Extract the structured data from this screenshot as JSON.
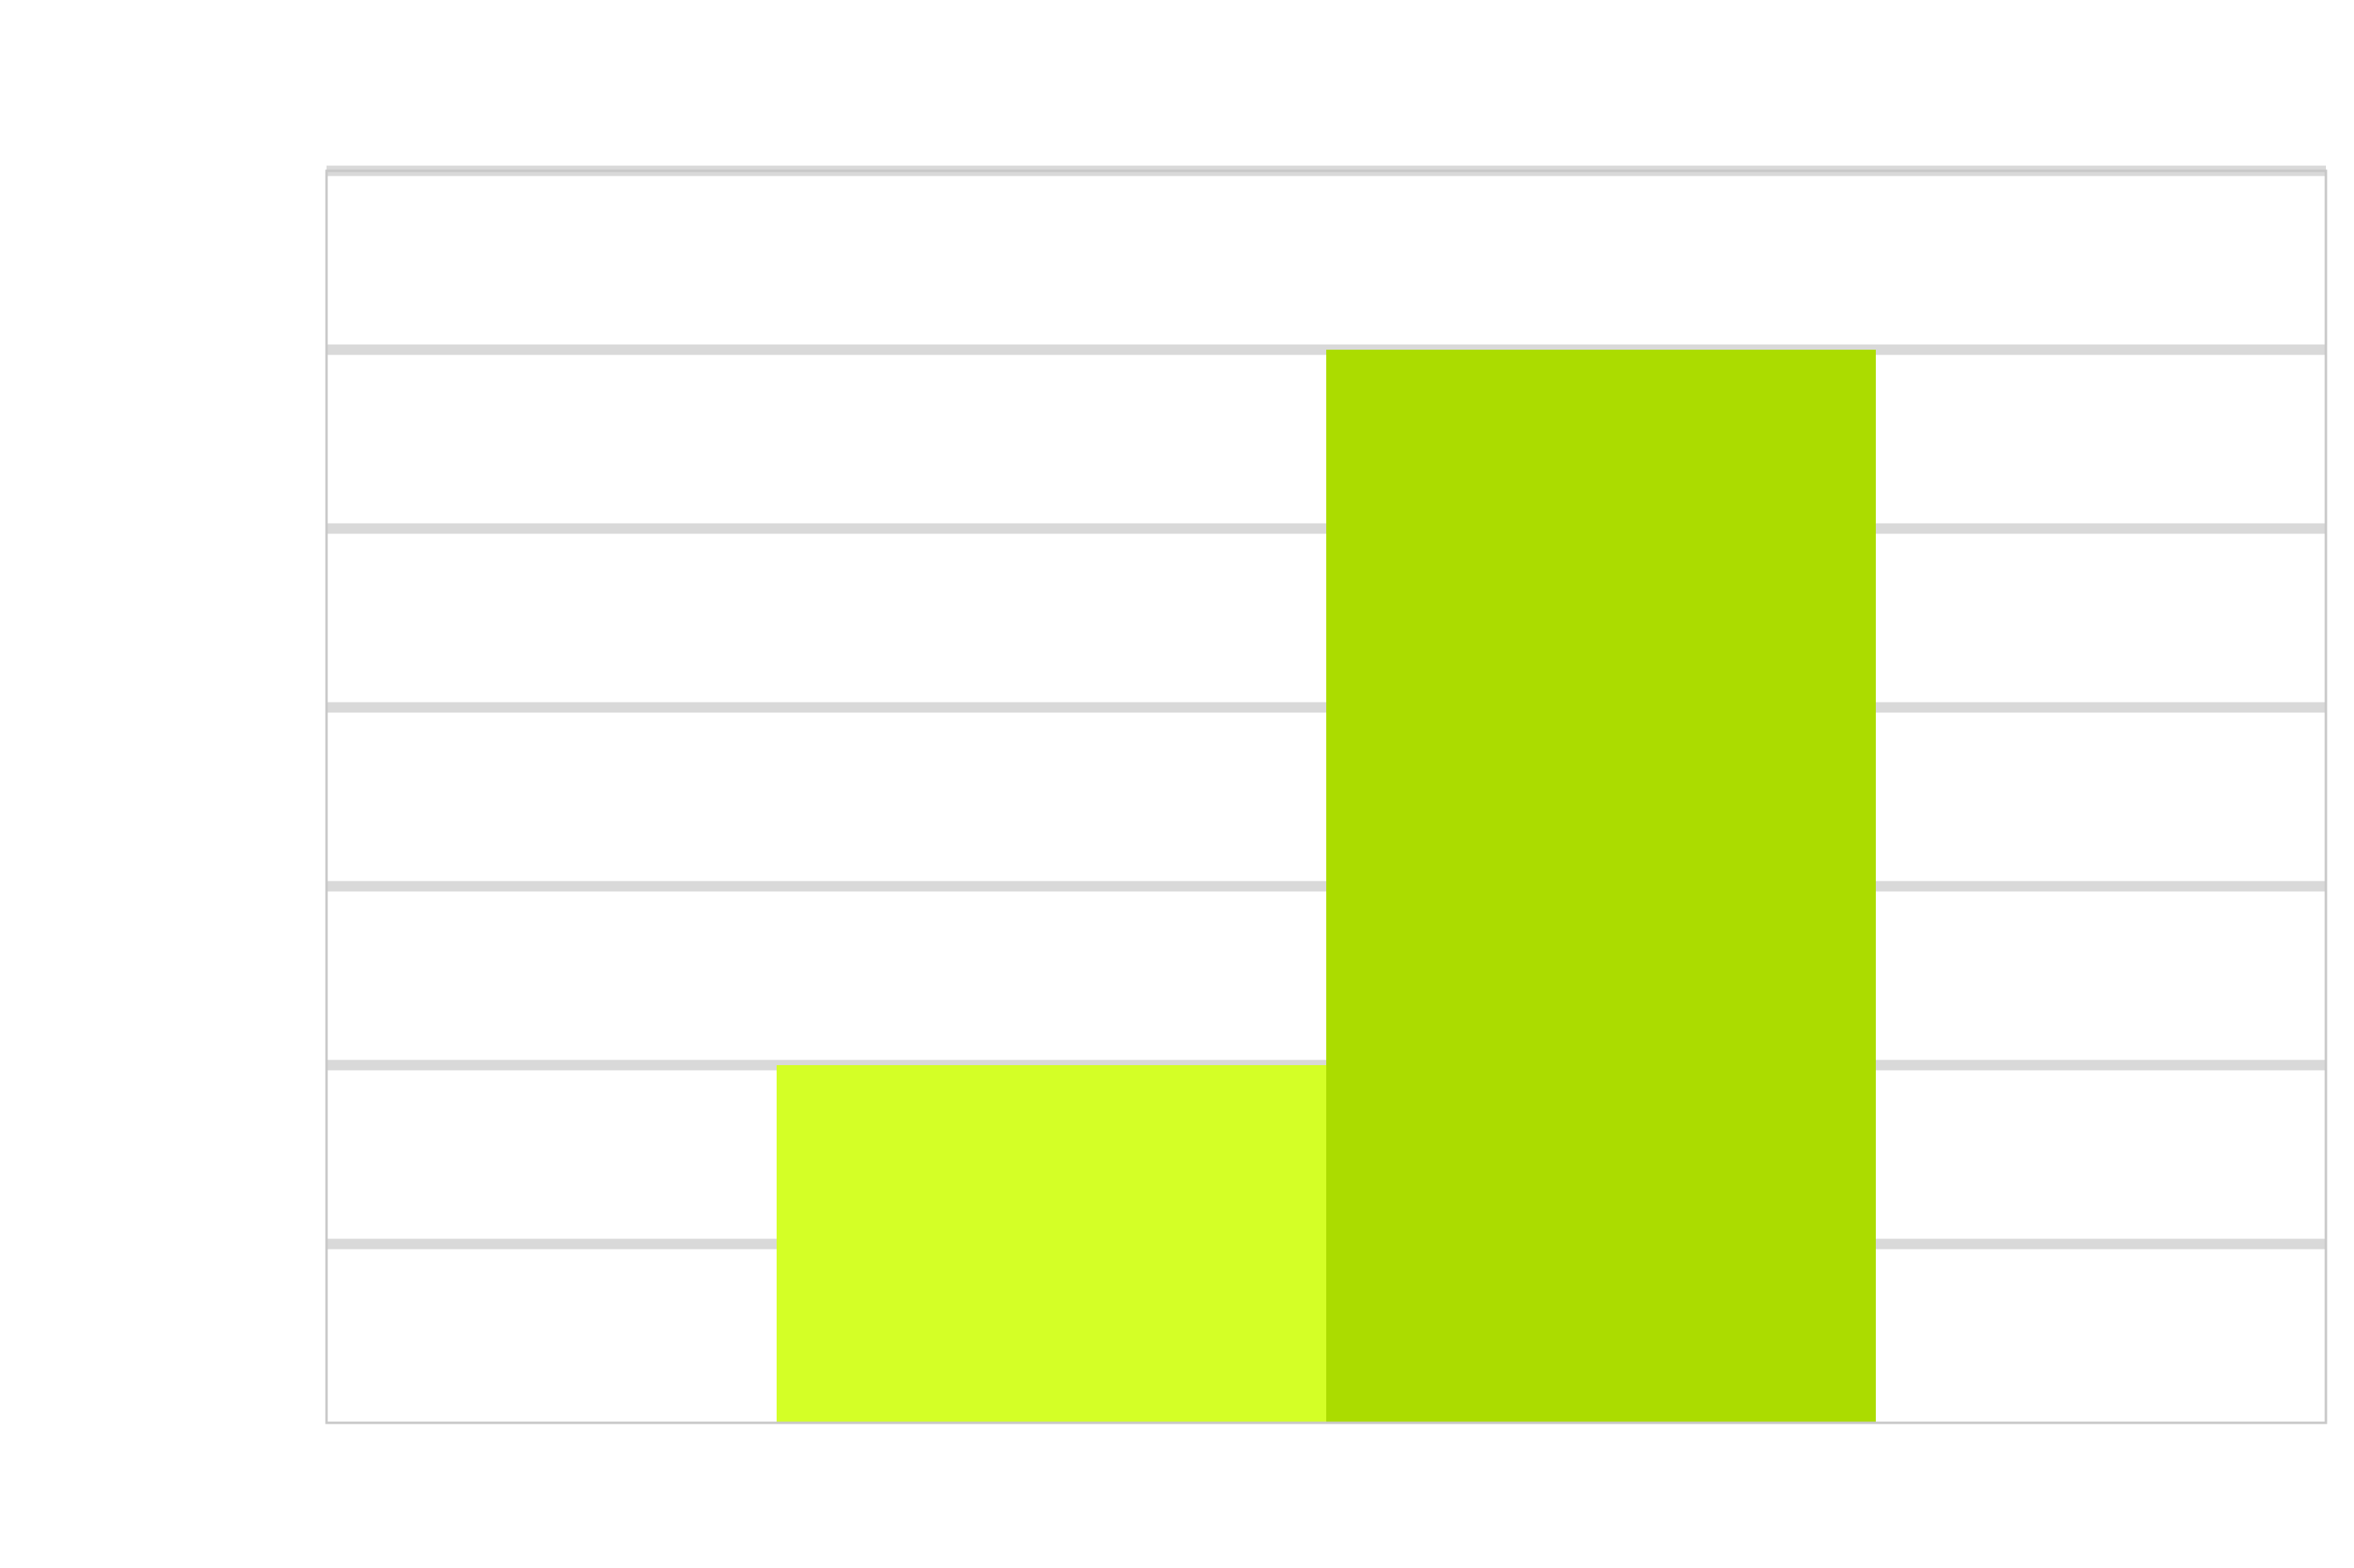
{
  "chart_data": {
    "type": "bar",
    "title": "",
    "xlabel": "",
    "ylabel": "",
    "ylim": [
      0,
      7
    ],
    "grid": true,
    "legend": "none",
    "categories": [
      "",
      ""
    ],
    "values": [
      2,
      6
    ],
    "colors": [
      "#d4ff26",
      "#abdc00"
    ],
    "grid_color": "#d9d9d9",
    "border_color": "#c8c8c8",
    "background": "#ffffff"
  }
}
